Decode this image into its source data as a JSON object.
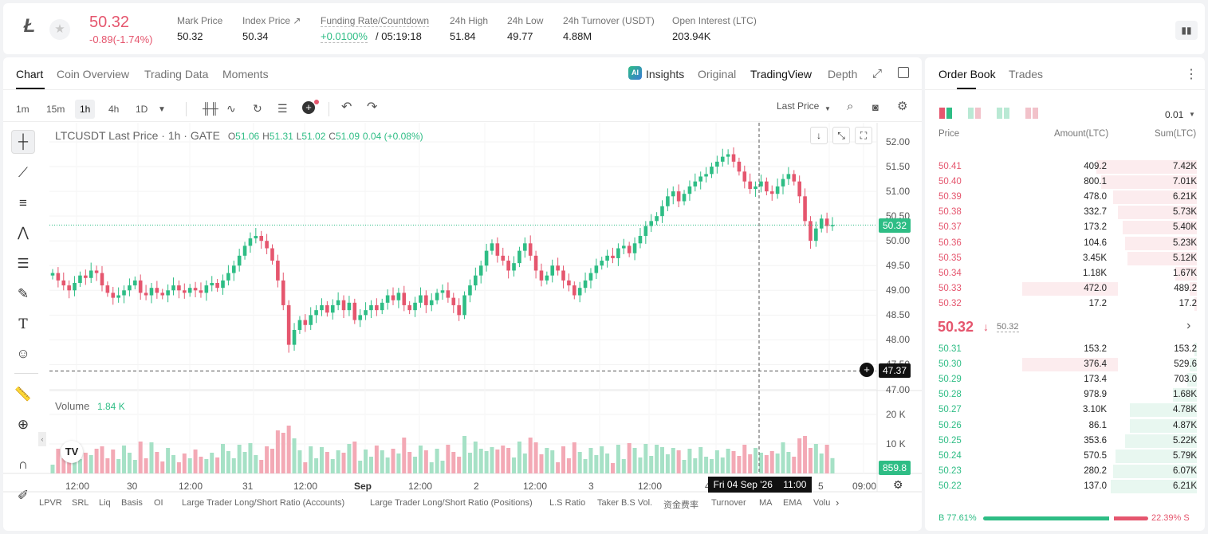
{
  "header": {
    "symbol_icon": "ltc-logo-icon",
    "last_price": "50.32",
    "change": "-0.89(-1.74%)",
    "stats": [
      {
        "label": "Mark Price",
        "value": "50.32"
      },
      {
        "label": "Index Price ↗",
        "value": "50.34"
      },
      {
        "label": "Funding Rate/Countdown",
        "value": "+0.0100%",
        "value2": "/ 05:19:18"
      },
      {
        "label": "24h High",
        "value": "51.84"
      },
      {
        "label": "24h Low",
        "value": "49.77"
      },
      {
        "label": "24h Turnover (USDT)",
        "value": "4.88M"
      },
      {
        "label": "Open Interest (LTC)",
        "value": "203.94K"
      }
    ]
  },
  "chart_tabs": [
    "Chart",
    "Coin Overview",
    "Trading Data",
    "Moments"
  ],
  "view_tabs": [
    "Insights",
    "Original",
    "TradingView",
    "Depth"
  ],
  "timeframes": [
    "1m",
    "15m",
    "1h",
    "4h",
    "1D"
  ],
  "price_type": "Last Price",
  "legend": {
    "title": "LTCUSDT Last Price · 1h · GATE",
    "o": "51.06",
    "h": "51.31",
    "l": "51.02",
    "c": "51.09",
    "chg": "0.04 (+0.08%)"
  },
  "volume_label": {
    "title": "Volume",
    "value": "1.84 K"
  },
  "price_axis": [
    "52.00",
    "51.50",
    "51.00",
    "50.50",
    "50.00",
    "49.50",
    "49.00",
    "48.50",
    "48.00",
    "47.50",
    "47.00"
  ],
  "current_price_label": "50.32",
  "crosshair_price_label": "47.37",
  "volume_axis": [
    "20 K",
    "10 K"
  ],
  "volume_current_label": "859.8",
  "time_axis": [
    "12:00",
    "30",
    "12:00",
    "31",
    "12:00",
    "Sep",
    "12:00",
    "2",
    "12:00",
    "3",
    "12:00",
    "4",
    "5",
    "09:00"
  ],
  "crosshair_time_label": "Fri 04 Sep '26    11:00",
  "bottom_tabs": [
    "LPVR",
    "SRL",
    "Liq",
    "Basis",
    "OI",
    "Large Trader Long/Short Ratio (Accounts)",
    "Large Trader Long/Short Ratio (Positions)",
    "L.S Ratio",
    "Taker B.S Vol.",
    "资金费率",
    "Turnover",
    "MA",
    "EMA",
    "Volu"
  ],
  "orderbook": {
    "tabs": [
      "Order Book",
      "Trades"
    ],
    "precision": "0.01",
    "headers": [
      "Price",
      "Amount(LTC)",
      "Sum(LTC)"
    ],
    "asks": [
      {
        "price": "50.41",
        "amount": "409.2",
        "sum": "7.42K",
        "depth": 0.42
      },
      {
        "price": "50.40",
        "amount": "800.1",
        "sum": "7.01K",
        "depth": 0.4
      },
      {
        "price": "50.39",
        "amount": "478.0",
        "sum": "6.21K",
        "depth": 0.35
      },
      {
        "price": "50.38",
        "amount": "332.7",
        "sum": "5.73K",
        "depth": 0.33
      },
      {
        "price": "50.37",
        "amount": "173.2",
        "sum": "5.40K",
        "depth": 0.31
      },
      {
        "price": "50.36",
        "amount": "104.6",
        "sum": "5.23K",
        "depth": 0.3
      },
      {
        "price": "50.35",
        "amount": "3.45K",
        "sum": "5.12K",
        "depth": 0.29
      },
      {
        "price": "50.34",
        "amount": "1.18K",
        "sum": "1.67K",
        "depth": 0.09
      },
      {
        "price": "50.33",
        "amount": "472.0",
        "sum": "489.2",
        "depth": 0.03
      },
      {
        "price": "50.32",
        "amount": "17.2",
        "sum": "17.2",
        "depth": 0.01
      }
    ],
    "mid_price": "50.32",
    "mid_mark": "50.32",
    "bids": [
      {
        "price": "50.31",
        "amount": "153.2",
        "sum": "153.2",
        "depth": 0.01
      },
      {
        "price": "50.30",
        "amount": "376.4",
        "sum": "529.6",
        "depth": 0.03
      },
      {
        "price": "50.29",
        "amount": "173.4",
        "sum": "703.0",
        "depth": 0.04
      },
      {
        "price": "50.28",
        "amount": "978.9",
        "sum": "1.68K",
        "depth": 0.1
      },
      {
        "price": "50.27",
        "amount": "3.10K",
        "sum": "4.78K",
        "depth": 0.28
      },
      {
        "price": "50.26",
        "amount": "86.1",
        "sum": "4.87K",
        "depth": 0.28
      },
      {
        "price": "50.25",
        "amount": "353.6",
        "sum": "5.22K",
        "depth": 0.3
      },
      {
        "price": "50.24",
        "amount": "570.5",
        "sum": "5.79K",
        "depth": 0.34
      },
      {
        "price": "50.23",
        "amount": "280.2",
        "sum": "6.07K",
        "depth": 0.35
      },
      {
        "price": "50.22",
        "amount": "137.0",
        "sum": "6.21K",
        "depth": 0.36
      }
    ],
    "buy_ratio": "B 77.61%",
    "sell_ratio": "22.39% S",
    "buy_fraction": 0.7761
  },
  "colors": {
    "up": "#2ebd85",
    "down": "#e5566e",
    "accent": "#111111"
  }
}
